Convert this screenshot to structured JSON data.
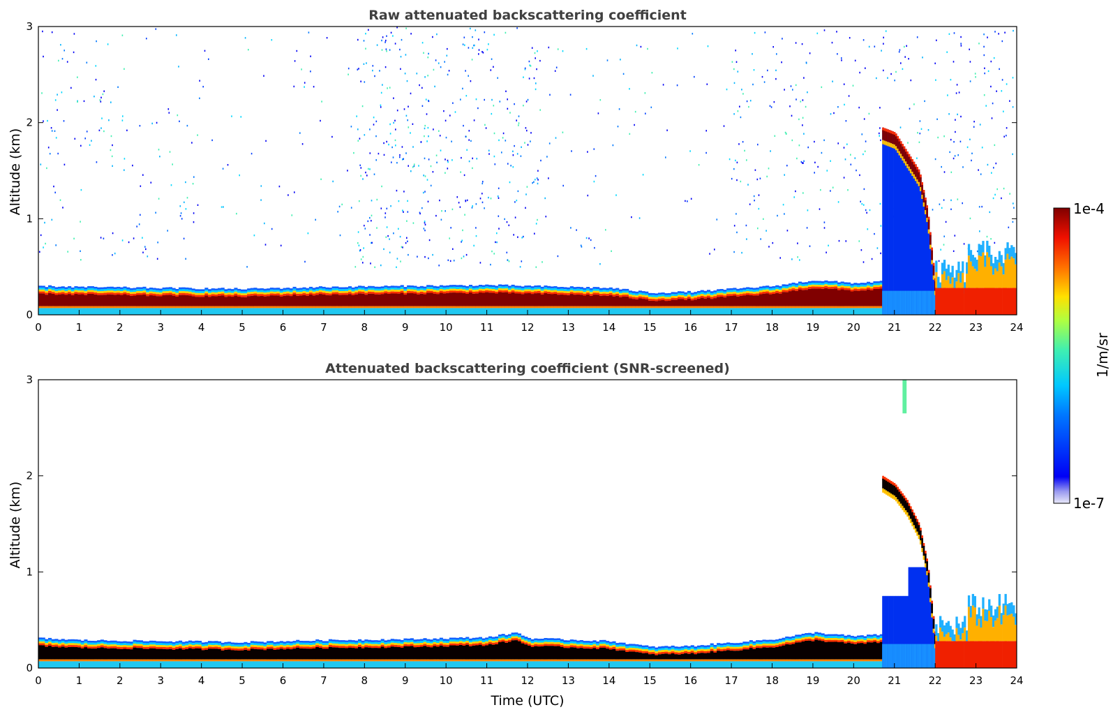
{
  "chart_data": [
    {
      "type": "heatmap",
      "title": "Raw attenuated backscattering coefficient",
      "xlabel": "",
      "ylabel": "Altitude (km)",
      "xlim": [
        0,
        24
      ],
      "ylim": [
        0,
        3
      ],
      "xticks": [
        "0",
        "1",
        "2",
        "3",
        "4",
        "5",
        "6",
        "7",
        "8",
        "9",
        "10",
        "11",
        "12",
        "13",
        "14",
        "15",
        "16",
        "17",
        "18",
        "19",
        "20",
        "21",
        "22",
        "23",
        "24"
      ],
      "yticks": [
        "0",
        "1",
        "2",
        "3"
      ],
      "features": {
        "boundary_layer_top_km": [
          [
            0,
            0.3
          ],
          [
            1,
            0.29
          ],
          [
            3,
            0.28
          ],
          [
            5,
            0.27
          ],
          [
            7,
            0.29
          ],
          [
            9,
            0.3
          ],
          [
            11,
            0.31
          ],
          [
            12,
            0.3
          ],
          [
            14,
            0.28
          ],
          [
            15,
            0.23
          ],
          [
            16,
            0.24
          ],
          [
            18,
            0.3
          ],
          [
            19,
            0.36
          ],
          [
            20,
            0.33
          ],
          [
            20.7,
            0.35
          ]
        ],
        "cloud_layer_km": [
          [
            20.7,
            1.95
          ],
          [
            21.0,
            1.9
          ],
          [
            21.3,
            1.7
          ],
          [
            21.6,
            1.5
          ],
          [
            21.8,
            1.1
          ],
          [
            22.0,
            0.3
          ]
        ],
        "noise_region": "scattered weak signal above boundary layer, strongest 8-12 UTC and 17-24 UTC"
      }
    },
    {
      "type": "heatmap",
      "title": "Attenuated backscattering coefficient (SNR-screened)",
      "xlabel": "Time (UTC)",
      "ylabel": "Altitude (km)",
      "xlim": [
        0,
        24
      ],
      "ylim": [
        0,
        3
      ],
      "xticks": [
        "0",
        "1",
        "2",
        "3",
        "4",
        "5",
        "6",
        "7",
        "8",
        "9",
        "10",
        "11",
        "12",
        "13",
        "14",
        "15",
        "16",
        "17",
        "18",
        "19",
        "20",
        "21",
        "22",
        "23",
        "24"
      ],
      "yticks": [
        "0",
        "1",
        "2",
        "3"
      ],
      "features": {
        "boundary_layer_top_km": [
          [
            0,
            0.31
          ],
          [
            1,
            0.29
          ],
          [
            3,
            0.28
          ],
          [
            5,
            0.27
          ],
          [
            7,
            0.29
          ],
          [
            9,
            0.3
          ],
          [
            11,
            0.32
          ],
          [
            11.7,
            0.37
          ],
          [
            12,
            0.31
          ],
          [
            14,
            0.28
          ],
          [
            15,
            0.22
          ],
          [
            16,
            0.23
          ],
          [
            18,
            0.3
          ],
          [
            19,
            0.37
          ],
          [
            20,
            0.33
          ],
          [
            20.7,
            0.35
          ]
        ],
        "cloud_layer_km": [
          [
            20.7,
            2.0
          ],
          [
            21.0,
            1.92
          ],
          [
            21.3,
            1.75
          ],
          [
            21.6,
            1.5
          ],
          [
            21.8,
            1.1
          ],
          [
            22.0,
            0.3
          ]
        ],
        "isolated_feature": {
          "time_utc": [
            21.2,
            21.3
          ],
          "altitude_km": [
            2.65,
            3.0
          ]
        }
      }
    }
  ],
  "colorbar": {
    "max_label": "1e-4",
    "min_label": "1e-7",
    "unit_label": "1/m/sr",
    "colormap": "jet",
    "range": [
      1e-07,
      0.0001
    ]
  }
}
